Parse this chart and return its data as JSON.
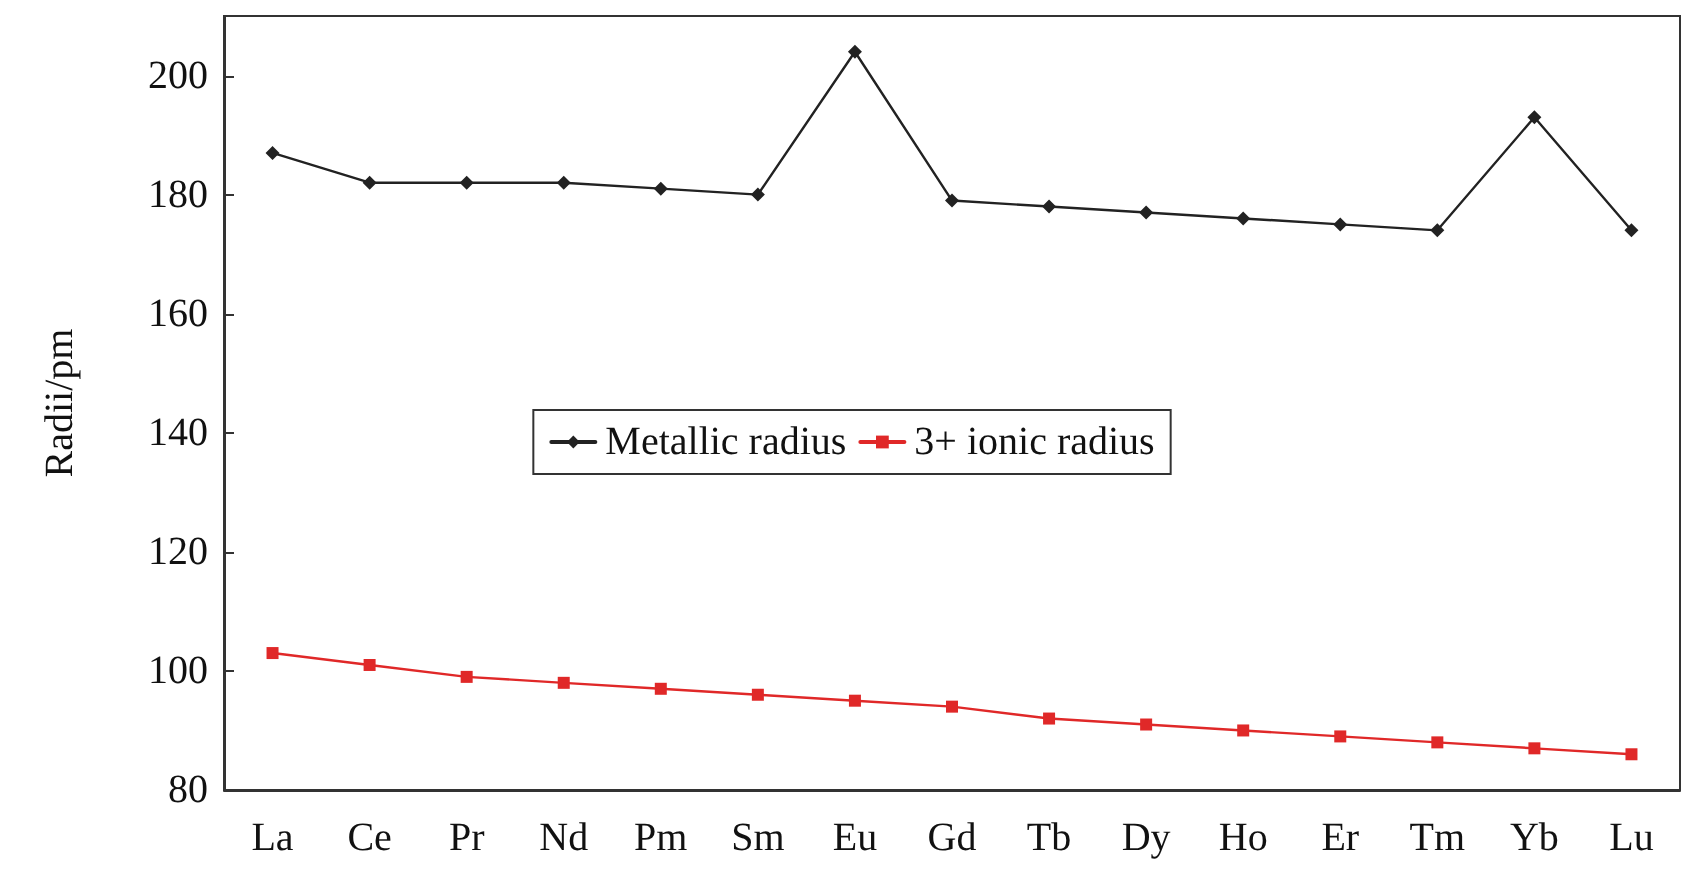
{
  "chart_data": {
    "type": "line",
    "ylabel": "Radii/pm",
    "categories": [
      "La",
      "Ce",
      "Pr",
      "Nd",
      "Pm",
      "Sm",
      "Eu",
      "Gd",
      "Tb",
      "Dy",
      "Ho",
      "Er",
      "Tm",
      "Yb",
      "Lu"
    ],
    "series": [
      {
        "name": "Metallic radius",
        "color": "#222222",
        "marker": "diamond",
        "values": [
          187,
          182,
          182,
          182,
          181,
          180,
          204,
          179,
          178,
          177,
          176,
          175,
          174,
          193,
          174
        ]
      },
      {
        "name": "3+ ionic radius",
        "color": "#e02828",
        "marker": "square",
        "values": [
          103,
          101,
          99,
          98,
          97,
          96,
          95,
          94,
          92,
          91,
          90,
          89,
          88,
          87,
          86
        ]
      }
    ],
    "ylim": [
      80,
      210
    ],
    "yticks": [
      80,
      100,
      120,
      140,
      160,
      180,
      200
    ],
    "grid": false,
    "legend": "center",
    "line_style": "solid"
  }
}
